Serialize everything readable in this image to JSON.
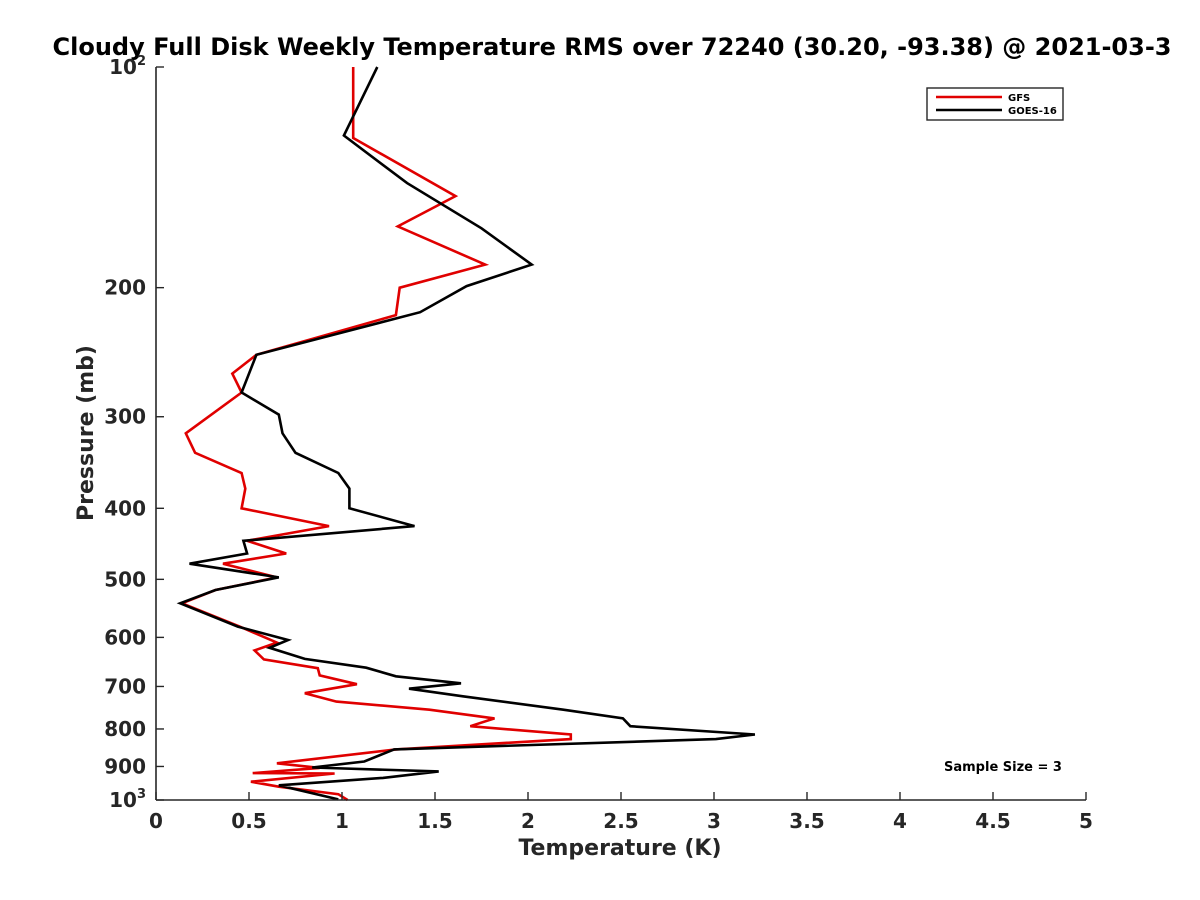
{
  "chart_data": {
    "type": "line",
    "title": "Cloudy Full Disk Weekly Temperature RMS over 72240 (30.20, -93.38) @ 2021-03-3",
    "xlabel": "Temperature (K)",
    "ylabel": "Pressure (mb)",
    "xlim": [
      0,
      5
    ],
    "ylim": [
      1000,
      100
    ],
    "yscale": "log",
    "y_reversed": true,
    "grid": false,
    "legend_placement": "top-right",
    "x_ticks": [
      0,
      0.5,
      1,
      1.5,
      2,
      2.5,
      3,
      3.5,
      4,
      4.5,
      5
    ],
    "x_tick_labels": [
      "0",
      "0.5",
      "1",
      "1.5",
      "2",
      "2.5",
      "3",
      "3.5",
      "4",
      "4.5",
      "5"
    ],
    "y_ticks": [
      {
        "value": 100,
        "base": "10",
        "exp": "2"
      },
      {
        "value": 200,
        "label": "200"
      },
      {
        "value": 300,
        "label": "300"
      },
      {
        "value": 400,
        "label": "400"
      },
      {
        "value": 500,
        "label": "500"
      },
      {
        "value": 600,
        "label": "600"
      },
      {
        "value": 700,
        "label": "700"
      },
      {
        "value": 800,
        "label": "800"
      },
      {
        "value": 900,
        "label": "900"
      },
      {
        "value": 1000,
        "base": "10",
        "exp": "3"
      }
    ],
    "annotation": "Sample Size = 3",
    "series": [
      {
        "name": "GFS",
        "color": "#e00000",
        "points": [
          [
            1.06,
            100
          ],
          [
            1.06,
            125
          ],
          [
            1.61,
            150
          ],
          [
            1.3,
            165
          ],
          [
            1.77,
            186
          ],
          [
            1.31,
            200
          ],
          [
            1.29,
            218
          ],
          [
            0.54,
            247
          ],
          [
            0.41,
            262
          ],
          [
            0.46,
            278
          ],
          [
            0.16,
            316
          ],
          [
            0.21,
            336
          ],
          [
            0.46,
            358
          ],
          [
            0.48,
            376
          ],
          [
            0.46,
            400
          ],
          [
            0.93,
            423
          ],
          [
            0.49,
            443
          ],
          [
            0.7,
            461
          ],
          [
            0.36,
            476
          ],
          [
            0.65,
            497
          ],
          [
            0.32,
            517
          ],
          [
            0.14,
            539
          ],
          [
            0.45,
            580
          ],
          [
            0.65,
            610
          ],
          [
            0.53,
            625
          ],
          [
            0.58,
            643
          ],
          [
            0.87,
            661
          ],
          [
            0.88,
            676
          ],
          [
            1.08,
            695
          ],
          [
            0.8,
            715
          ],
          [
            0.97,
            734
          ],
          [
            1.47,
            753
          ],
          [
            1.82,
            774
          ],
          [
            1.69,
            793
          ],
          [
            2.23,
            814
          ],
          [
            2.23,
            826
          ],
          [
            1.29,
            853
          ],
          [
            0.65,
            891
          ],
          [
            0.88,
            904
          ],
          [
            0.52,
            919
          ],
          [
            0.96,
            920
          ],
          [
            0.51,
            944
          ],
          [
            0.66,
            959
          ],
          [
            0.98,
            982
          ],
          [
            1.03,
            1000
          ]
        ]
      },
      {
        "name": "GOES-16",
        "color": "#000000",
        "points": [
          [
            1.19,
            100
          ],
          [
            1.01,
            124
          ],
          [
            1.35,
            144
          ],
          [
            1.75,
            166
          ],
          [
            2.02,
            186
          ],
          [
            1.67,
            199
          ],
          [
            1.42,
            216
          ],
          [
            0.54,
            247
          ],
          [
            0.46,
            278
          ],
          [
            0.66,
            298
          ],
          [
            0.68,
            316
          ],
          [
            0.75,
            336
          ],
          [
            0.98,
            358
          ],
          [
            1.04,
            376
          ],
          [
            1.04,
            400
          ],
          [
            1.39,
            423
          ],
          [
            0.47,
            443
          ],
          [
            0.49,
            461
          ],
          [
            0.18,
            476
          ],
          [
            0.66,
            497
          ],
          [
            0.32,
            517
          ],
          [
            0.13,
            539
          ],
          [
            0.44,
            580
          ],
          [
            0.71,
            605
          ],
          [
            0.61,
            620
          ],
          [
            0.8,
            642
          ],
          [
            1.13,
            660
          ],
          [
            1.29,
            678
          ],
          [
            1.64,
            693
          ],
          [
            1.36,
            705
          ],
          [
            1.65,
            722
          ],
          [
            2.19,
            753
          ],
          [
            2.51,
            774
          ],
          [
            2.55,
            793
          ],
          [
            3.22,
            814
          ],
          [
            3.01,
            826
          ],
          [
            1.28,
            853
          ],
          [
            1.12,
            886
          ],
          [
            0.84,
            903
          ],
          [
            1.52,
            914
          ],
          [
            1.22,
            933
          ],
          [
            0.66,
            955
          ],
          [
            0.98,
            998
          ]
        ]
      }
    ]
  }
}
